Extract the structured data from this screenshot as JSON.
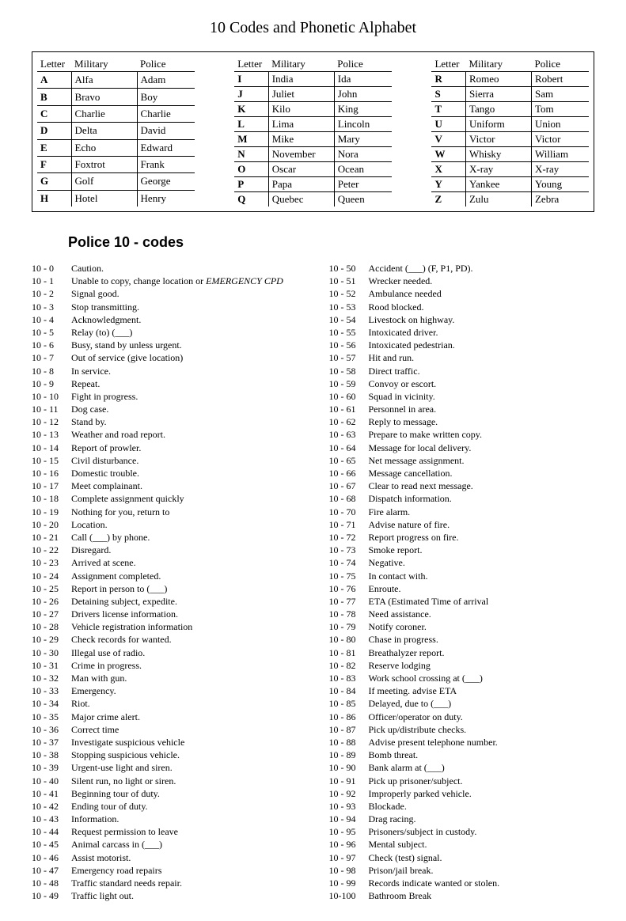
{
  "title": "10 Codes and Phonetic Alphabet",
  "alpha_headers": {
    "letter": "Letter",
    "military": "Military",
    "police": "Police"
  },
  "alpha": {
    "col1": [
      {
        "l": "A",
        "m": "Alfa",
        "p": "Adam"
      },
      {
        "l": "B",
        "m": "Bravo",
        "p": "Boy"
      },
      {
        "l": "C",
        "m": "Charlie",
        "p": "Charlie"
      },
      {
        "l": "D",
        "m": "Delta",
        "p": "David"
      },
      {
        "l": "E",
        "m": "Echo",
        "p": "Edward"
      },
      {
        "l": "F",
        "m": "Foxtrot",
        "p": "Frank"
      },
      {
        "l": "G",
        "m": "Golf",
        "p": "George"
      },
      {
        "l": "H",
        "m": "Hotel",
        "p": "Henry"
      }
    ],
    "col2": [
      {
        "l": "I",
        "m": "India",
        "p": "Ida"
      },
      {
        "l": "J",
        "m": "Juliet",
        "p": "John"
      },
      {
        "l": "K",
        "m": "Kilo",
        "p": "King"
      },
      {
        "l": "L",
        "m": "Lima",
        "p": "Lincoln"
      },
      {
        "l": "M",
        "m": "Mike",
        "p": "Mary"
      },
      {
        "l": "N",
        "m": "November",
        "p": "Nora"
      },
      {
        "l": "O",
        "m": "Oscar",
        "p": "Ocean"
      },
      {
        "l": "P",
        "m": "Papa",
        "p": "Peter"
      },
      {
        "l": "Q",
        "m": "Quebec",
        "p": "Queen"
      }
    ],
    "col3": [
      {
        "l": "R",
        "m": "Romeo",
        "p": "Robert"
      },
      {
        "l": "S",
        "m": "Sierra",
        "p": "Sam"
      },
      {
        "l": "T",
        "m": "Tango",
        "p": "Tom"
      },
      {
        "l": "U",
        "m": "Uniform",
        "p": "Union"
      },
      {
        "l": "V",
        "m": "Victor",
        "p": "Victor"
      },
      {
        "l": "W",
        "m": "Whisky",
        "p": "William"
      },
      {
        "l": "X",
        "m": "X-ray",
        "p": "X-ray"
      },
      {
        "l": "Y",
        "m": "Yankee",
        "p": "Young"
      },
      {
        "l": "Z",
        "m": "Zulu",
        "p": "Zebra"
      }
    ]
  },
  "section_title": "Police 10 - codes",
  "codes_left": [
    {
      "n": "10 - 0",
      "d": "Caution."
    },
    {
      "n": "10 - 1",
      "d": "Unable to copy, change location or ",
      "em": "EMERGENCY CPD"
    },
    {
      "n": "10 - 2",
      "d": "Signal good."
    },
    {
      "n": "10 - 3",
      "d": "Stop transmitting."
    },
    {
      "n": "10 - 4",
      "d": "Acknowledgment."
    },
    {
      "n": "10 - 5",
      "d": "Relay (to) (___)"
    },
    {
      "n": "10 - 6",
      "d": "Busy, stand by unless urgent."
    },
    {
      "n": "10 - 7",
      "d": "Out of service (give location)"
    },
    {
      "n": "10 - 8",
      "d": "In service."
    },
    {
      "n": "10 - 9",
      "d": "Repeat."
    },
    {
      "n": "10 - 10",
      "d": "Fight in progress."
    },
    {
      "n": "10 - 11",
      "d": "Dog case."
    },
    {
      "n": "10 - 12",
      "d": "Stand by."
    },
    {
      "n": "10 - 13",
      "d": "Weather and road report."
    },
    {
      "n": "10 - 14",
      "d": "Report of prowler."
    },
    {
      "n": "10 - 15",
      "d": "Civil disturbance."
    },
    {
      "n": "10 - 16",
      "d": "Domestic trouble."
    },
    {
      "n": "10 - 17",
      "d": "Meet complainant."
    },
    {
      "n": "10 - 18",
      "d": "Complete assignment quickly"
    },
    {
      "n": "10 - 19",
      "d": "Nothing for you, return to"
    },
    {
      "n": "10 - 20",
      "d": "Location."
    },
    {
      "n": "10 - 21",
      "d": "Call (___) by phone."
    },
    {
      "n": "10 - 22",
      "d": "Disregard."
    },
    {
      "n": "10 - 23",
      "d": "Arrived at scene."
    },
    {
      "n": "10 - 24",
      "d": "Assignment completed."
    },
    {
      "n": "10 - 25",
      "d": "Report in person to (___)"
    },
    {
      "n": "10 - 26",
      "d": "Detaining subject, expedite."
    },
    {
      "n": "10 - 27",
      "d": "Drivers license information."
    },
    {
      "n": "10 - 28",
      "d": "Vehicle registration information"
    },
    {
      "n": "10 - 29",
      "d": "Check records for wanted."
    },
    {
      "n": "10 - 30",
      "d": "Illegal use of radio."
    },
    {
      "n": "10 - 31",
      "d": "Crime in progress."
    },
    {
      "n": "10 - 32",
      "d": "Man with gun."
    },
    {
      "n": "10 - 33",
      "d": "Emergency."
    },
    {
      "n": "10 - 34",
      "d": "Riot."
    },
    {
      "n": "10 - 35",
      "d": "Major crime alert."
    },
    {
      "n": "10 - 36",
      "d": "Correct time"
    },
    {
      "n": "10 - 37",
      "d": "Investigate suspicious vehicle"
    },
    {
      "n": "10 - 38",
      "d": "Stopping suspicious vehicle."
    },
    {
      "n": "10 - 39",
      "d": "Urgent-use light and siren."
    },
    {
      "n": "10 - 40",
      "d": "Silent run, no light or siren."
    },
    {
      "n": "10 - 41",
      "d": "Beginning tour of duty."
    },
    {
      "n": "10 - 42",
      "d": "Ending tour of duty."
    },
    {
      "n": "10 - 43",
      "d": "Information."
    },
    {
      "n": "10 - 44",
      "d": "Request permission to leave"
    },
    {
      "n": "10 - 45",
      "d": "Animal carcass in (___)"
    },
    {
      "n": "10 - 46",
      "d": "Assist motorist."
    },
    {
      "n": "10 - 47",
      "d": "Emergency road repairs"
    },
    {
      "n": "10 - 48",
      "d": "Traffic standard needs repair."
    },
    {
      "n": "10 - 49",
      "d": "Traffic light out."
    }
  ],
  "codes_right": [
    {
      "n": "10 - 50",
      "d": "Accident (___) (F, P1, PD)."
    },
    {
      "n": "10 - 51",
      "d": "Wrecker needed."
    },
    {
      "n": "10 - 52",
      "d": "Ambulance needed"
    },
    {
      "n": "10 - 53",
      "d": "Rood blocked."
    },
    {
      "n": "10 - 54",
      "d": "Livestock on highway."
    },
    {
      "n": "10 - 55",
      "d": "Intoxicated driver."
    },
    {
      "n": "10 - 56",
      "d": "Intoxicated pedestrian."
    },
    {
      "n": "10 - 57",
      "d": "Hit and run."
    },
    {
      "n": "10 - 58",
      "d": "Direct traffic."
    },
    {
      "n": "10 - 59",
      "d": "Convoy or escort."
    },
    {
      "n": "10 - 60",
      "d": "Squad in vicinity."
    },
    {
      "n": "10 - 61",
      "d": "Personnel in area."
    },
    {
      "n": "10 - 62",
      "d": "Reply to message."
    },
    {
      "n": "10 - 63",
      "d": "Prepare to make written copy."
    },
    {
      "n": "10 - 64",
      "d": "Message for local delivery."
    },
    {
      "n": "10 - 65",
      "d": "Net message assignment."
    },
    {
      "n": "10 - 66",
      "d": "Message cancellation."
    },
    {
      "n": "10 - 67",
      "d": "Clear to read next message."
    },
    {
      "n": "10 - 68",
      "d": "Dispatch information."
    },
    {
      "n": "10 - 70",
      "d": "Fire alarm."
    },
    {
      "n": "10 - 71",
      "d": "Advise nature of fire."
    },
    {
      "n": "10 - 72",
      "d": "Report progress on fire."
    },
    {
      "n": "10 - 73",
      "d": "Smoke report."
    },
    {
      "n": "10 - 74",
      "d": "Negative."
    },
    {
      "n": "10 - 75",
      "d": "In contact with."
    },
    {
      "n": "10 - 76",
      "d": "Enroute."
    },
    {
      "n": "10 - 77",
      "d": "ETA (Estimated Time of arrival"
    },
    {
      "n": "10 - 78",
      "d": "Need assistance."
    },
    {
      "n": "10 - 79",
      "d": "Notify coroner."
    },
    {
      "n": "10 - 80",
      "d": "Chase in progress."
    },
    {
      "n": "10 - 81",
      "d": "Breathalyzer report."
    },
    {
      "n": "10 - 82",
      "d": "Reserve lodging"
    },
    {
      "n": "10 - 83",
      "d": "Work school crossing at (___)"
    },
    {
      "n": "10 - 84",
      "d": "If meeting. advise ETA"
    },
    {
      "n": "10 - 85",
      "d": "Delayed, due to (___)"
    },
    {
      "n": "10 - 86",
      "d": "Officer/operator on duty."
    },
    {
      "n": "10 - 87",
      "d": "Pick up/distribute checks."
    },
    {
      "n": "10 - 88",
      "d": "Advise present telephone number."
    },
    {
      "n": "10 - 89",
      "d": "Bomb threat."
    },
    {
      "n": "10 - 90",
      "d": "Bank alarm at (___)"
    },
    {
      "n": "10 - 91",
      "d": "Pick up prisoner/subject."
    },
    {
      "n": "10 - 92",
      "d": "Improperly parked vehicle."
    },
    {
      "n": "10 - 93",
      "d": "Blockade."
    },
    {
      "n": "10 - 94",
      "d": "Drag racing."
    },
    {
      "n": "10 - 95",
      "d": "Prisoners/subject in custody."
    },
    {
      "n": "10 - 96",
      "d": "Mental subject."
    },
    {
      "n": "10 - 97",
      "d": "Check (test) signal."
    },
    {
      "n": "10 - 98",
      "d": "Prison/jail break."
    },
    {
      "n": "10 - 99",
      "d": "Records indicate wanted or stolen."
    },
    {
      "n": "10-100",
      "d": "Bathroom Break"
    }
  ]
}
